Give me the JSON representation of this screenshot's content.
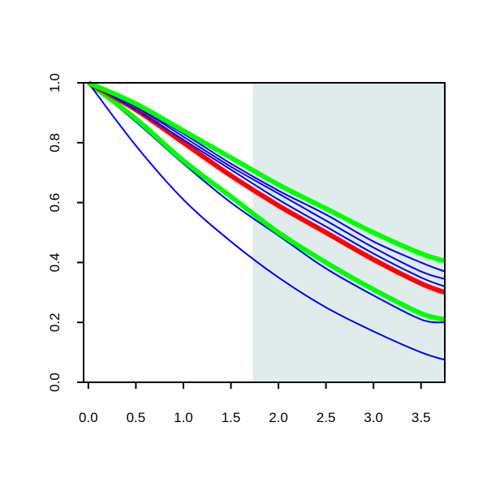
{
  "chart_data": {
    "type": "line",
    "title": "",
    "xlabel": "",
    "ylabel": "",
    "xlim": [
      -0.05,
      3.75
    ],
    "ylim": [
      0.0,
      1.0
    ],
    "x_ticks": [
      0.0,
      0.5,
      1.0,
      1.5,
      2.0,
      2.5,
      3.0,
      3.5
    ],
    "x_tick_labels": [
      "0.0",
      "0.5",
      "1.0",
      "1.5",
      "2.0",
      "2.5",
      "3.0",
      "3.5"
    ],
    "y_ticks": [
      0.0,
      0.2,
      0.4,
      0.6,
      0.8,
      1.0
    ],
    "y_tick_labels": [
      "0.0",
      "0.2",
      "0.4",
      "0.6",
      "0.8",
      "1.0"
    ],
    "grid": false,
    "legend": "none",
    "shaded_region": {
      "x_start": 1.73,
      "x_end": 3.75,
      "color": "#e0ecec"
    },
    "series": [
      {
        "color": "#0000ff",
        "width": "thin",
        "x": [
          0,
          0.5,
          1,
          1.5,
          2,
          2.5,
          3,
          3.5,
          3.75
        ],
        "y": [
          1.0,
          0.87,
          0.73,
          0.6,
          0.49,
          0.38,
          0.29,
          0.21,
          0.2
        ]
      },
      {
        "color": "#00ff00",
        "width": "thick",
        "x": [
          0,
          0.5,
          1,
          1.5,
          2,
          2.5,
          3,
          3.5,
          3.75
        ],
        "y": [
          1.0,
          0.88,
          0.74,
          0.62,
          0.5,
          0.4,
          0.31,
          0.23,
          0.21
        ]
      },
      {
        "color": "#0000ff",
        "width": "thin",
        "x": [
          0,
          0.5,
          1,
          1.5,
          2,
          2.5,
          3,
          3.5,
          3.75
        ],
        "y": [
          1.0,
          0.79,
          0.61,
          0.47,
          0.35,
          0.25,
          0.17,
          0.1,
          0.075
        ]
      },
      {
        "color": "#ff0000",
        "width": "thick",
        "x": [
          0,
          0.5,
          1,
          1.5,
          2,
          2.5,
          3,
          3.5,
          3.75
        ],
        "y": [
          1.0,
          0.91,
          0.8,
          0.69,
          0.59,
          0.5,
          0.41,
          0.33,
          0.3
        ]
      },
      {
        "color": "#0000ff",
        "width": "thin",
        "x": [
          0,
          0.5,
          1,
          1.5,
          2,
          2.5,
          3,
          3.5,
          3.75
        ],
        "y": [
          1.0,
          0.91,
          0.81,
          0.71,
          0.61,
          0.52,
          0.43,
          0.35,
          0.32
        ]
      },
      {
        "color": "#0000ff",
        "width": "thin",
        "x": [
          0,
          0.5,
          1,
          1.5,
          2,
          2.5,
          3,
          3.5,
          3.75
        ],
        "y": [
          1.0,
          0.92,
          0.82,
          0.72,
          0.63,
          0.54,
          0.45,
          0.37,
          0.345
        ]
      },
      {
        "color": "#0000ff",
        "width": "thin",
        "x": [
          0,
          0.5,
          1,
          1.5,
          2,
          2.5,
          3,
          3.5,
          3.75
        ],
        "y": [
          1.0,
          0.92,
          0.83,
          0.73,
          0.64,
          0.56,
          0.47,
          0.4,
          0.37
        ]
      },
      {
        "color": "#00ff00",
        "width": "thick",
        "x": [
          0,
          0.5,
          1,
          1.5,
          2,
          2.5,
          3,
          3.5,
          3.75
        ],
        "y": [
          1.0,
          0.93,
          0.84,
          0.75,
          0.66,
          0.58,
          0.5,
          0.43,
          0.405
        ]
      }
    ]
  }
}
